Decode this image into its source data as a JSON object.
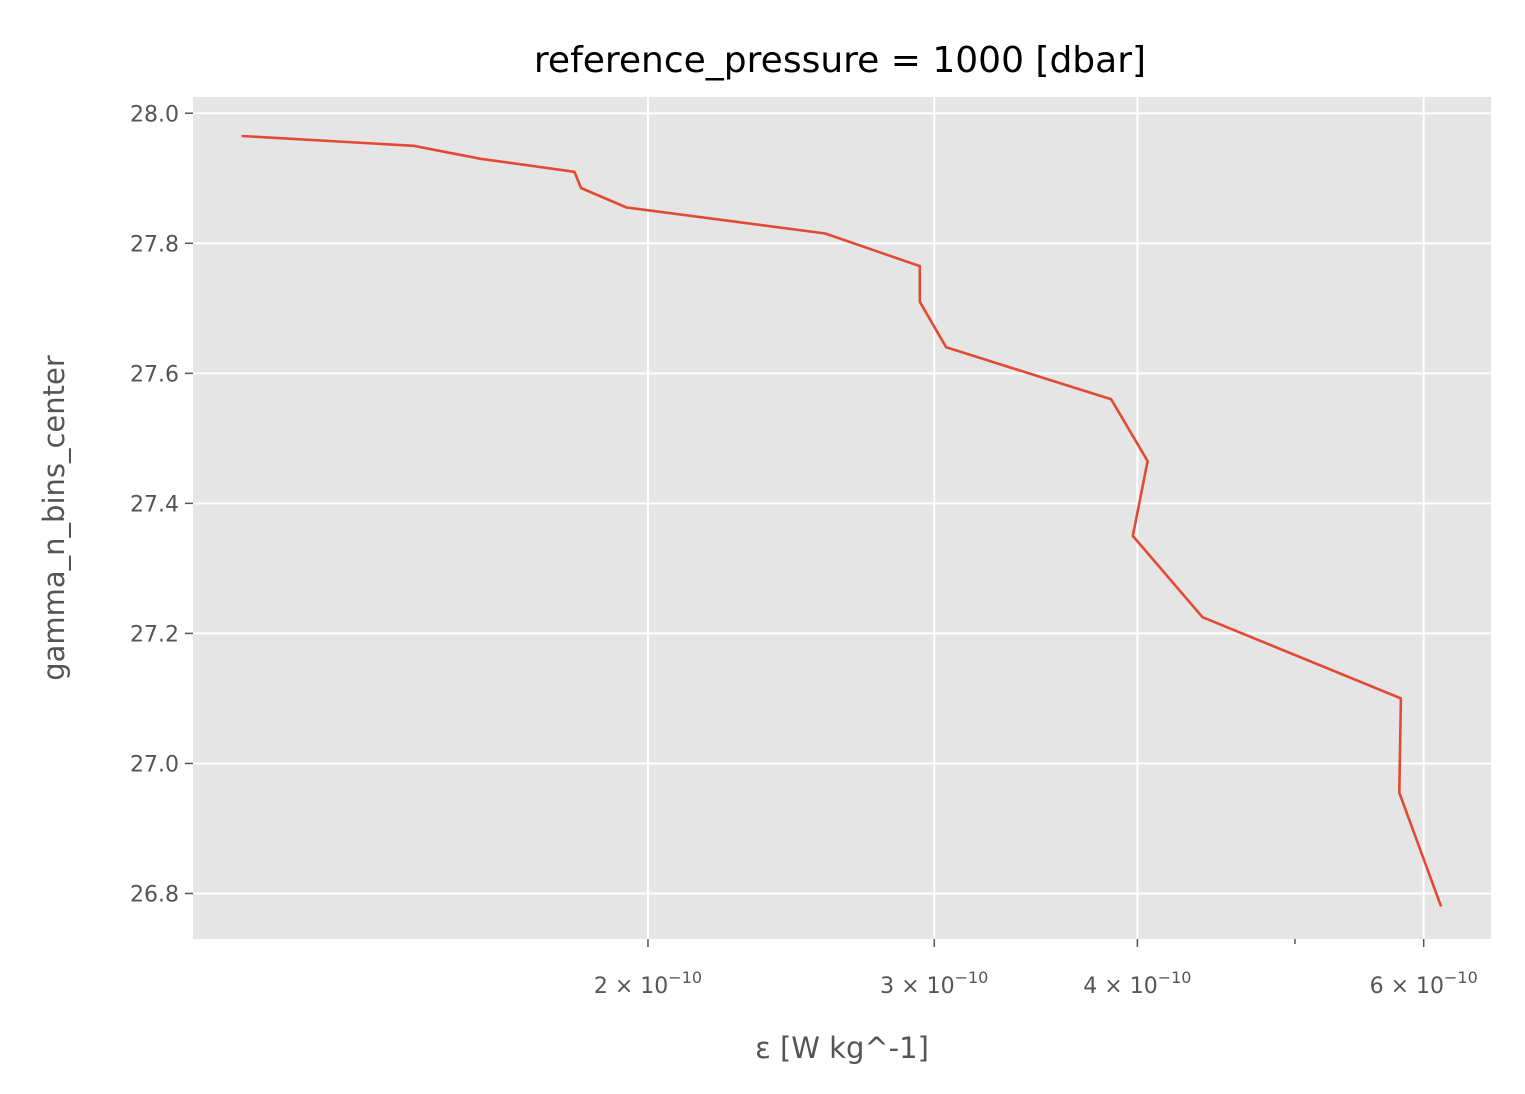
{
  "chart_data": {
    "type": "line",
    "title": "reference_pressure = 1000 [dbar]",
    "xlabel": "ε [W kg^-1]",
    "ylabel": "gamma_n_bins_center",
    "x_scale": "log",
    "xlim": [
      1.05e-10,
      6.6e-10
    ],
    "ylim": [
      26.73,
      28.025
    ],
    "grid": true,
    "background_color": "#e5e5e5",
    "line_color": "#e24a33",
    "x_ticks": [
      {
        "value": 2e-10,
        "label": "2 × 10",
        "exp": "−10"
      },
      {
        "value": 3e-10,
        "label": "3 × 10",
        "exp": "−10"
      },
      {
        "value": 4e-10,
        "label": "4 × 10",
        "exp": "−10"
      },
      {
        "value": 6e-10,
        "label": "6 × 10",
        "exp": "−10"
      }
    ],
    "x_minor_ticks": [
      5e-10
    ],
    "y_ticks": [
      {
        "value": 28.0,
        "label": "28.0"
      },
      {
        "value": 27.8,
        "label": "27.8"
      },
      {
        "value": 27.6,
        "label": "27.6"
      },
      {
        "value": 27.4,
        "label": "27.4"
      },
      {
        "value": 27.2,
        "label": "27.2"
      },
      {
        "value": 27.0,
        "label": "27.0"
      },
      {
        "value": 26.8,
        "label": "26.8"
      }
    ],
    "series": [
      {
        "points": [
          [
            1.125e-10,
            27.965
          ],
          [
            1.435e-10,
            27.95
          ],
          [
            1.578e-10,
            27.93
          ],
          [
            1.802e-10,
            27.91
          ],
          [
            1.819e-10,
            27.885
          ],
          [
            1.94e-10,
            27.855
          ],
          [
            2.571e-10,
            27.815
          ],
          [
            2.939e-10,
            27.765
          ],
          [
            2.939e-10,
            27.71
          ],
          [
            3.051e-10,
            27.64
          ],
          [
            3.854e-10,
            27.56
          ],
          [
            4.058e-10,
            27.465
          ],
          [
            3.974e-10,
            27.35
          ],
          [
            4.386e-10,
            27.225
          ],
          [
            5.809e-10,
            27.1
          ],
          [
            5.796e-10,
            26.955
          ],
          [
            6.15e-10,
            26.78
          ]
        ]
      }
    ]
  }
}
